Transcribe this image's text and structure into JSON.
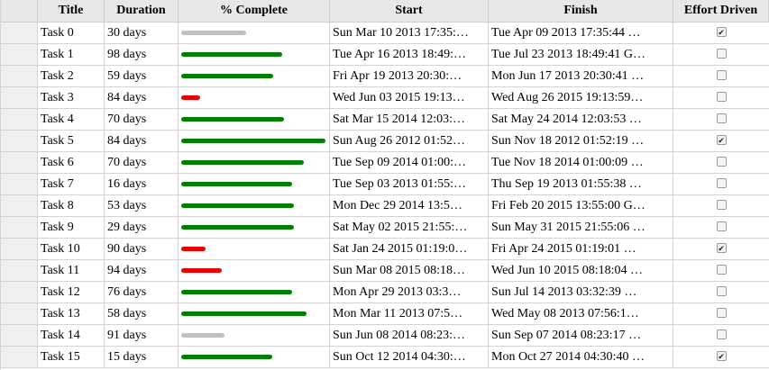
{
  "columns": {
    "title": "Title",
    "duration": "Duration",
    "percent": "% Complete",
    "start": "Start",
    "finish": "Finish",
    "effort": "Effort Driven"
  },
  "colors": {
    "complete_high": "#008000",
    "complete_low": "#ee0000",
    "complete_none": "#c0c0c0"
  },
  "rows": [
    {
      "title": "Task 0",
      "duration": "30 days",
      "percent": 45,
      "bar_color": "#c0c0c0",
      "start": "Sun Mar 10 2013 17:35:…",
      "finish": "Tue Apr 09 2013 17:35:44 …",
      "effort": true
    },
    {
      "title": "Task 1",
      "duration": "98 days",
      "percent": 70,
      "bar_color": "#008000",
      "start": "Tue Apr 16 2013 18:49:…",
      "finish": "Tue Jul 23 2013 18:49:41 G…",
      "effort": false
    },
    {
      "title": "Task 2",
      "duration": "59 days",
      "percent": 64,
      "bar_color": "#008000",
      "start": "Fri Apr 19 2013 20:30:…",
      "finish": "Mon Jun 17 2013 20:30:41 …",
      "effort": false
    },
    {
      "title": "Task 3",
      "duration": "84 days",
      "percent": 13,
      "bar_color": "#ee0000",
      "start": "Wed Jun 03 2015 19:13…",
      "finish": "Wed Aug 26 2015 19:13:59…",
      "effort": false
    },
    {
      "title": "Task 4",
      "duration": "70 days",
      "percent": 71,
      "bar_color": "#008000",
      "start": "Sat Mar 15 2014 12:03:…",
      "finish": "Sat May 24 2014 12:03:53 …",
      "effort": false
    },
    {
      "title": "Task 5",
      "duration": "84 days",
      "percent": 100,
      "bar_color": "#008000",
      "start": "Sun Aug 26 2012 01:52…",
      "finish": "Sun Nov 18 2012 01:52:19 …",
      "effort": true
    },
    {
      "title": "Task 6",
      "duration": "70 days",
      "percent": 85,
      "bar_color": "#008000",
      "start": "Tue Sep 09 2014 01:00:…",
      "finish": "Tue Nov 18 2014 01:00:09 …",
      "effort": false
    },
    {
      "title": "Task 7",
      "duration": "16 days",
      "percent": 77,
      "bar_color": "#008000",
      "start": "Tue Sep 03 2013 01:55:…",
      "finish": "Thu Sep 19 2013 01:55:38 …",
      "effort": false
    },
    {
      "title": "Task 8",
      "duration": "53 days",
      "percent": 78,
      "bar_color": "#008000",
      "start": "Mon Dec 29 2014 13:5…",
      "finish": "Fri Feb 20 2015 13:55:00 G…",
      "effort": false
    },
    {
      "title": "Task 9",
      "duration": "29 days",
      "percent": 78,
      "bar_color": "#008000",
      "start": "Sat May 02 2015 21:55:…",
      "finish": "Sun May 31 2015 21:55:06 …",
      "effort": false
    },
    {
      "title": "Task 10",
      "duration": "90 days",
      "percent": 17,
      "bar_color": "#ee0000",
      "start": "Sat Jan 24 2015 01:19:0…",
      "finish": "Fri Apr 24 2015 01:19:01 …",
      "effort": true
    },
    {
      "title": "Task 11",
      "duration": "94 days",
      "percent": 28,
      "bar_color": "#ee0000",
      "start": "Sun Mar 08 2015 08:18…",
      "finish": "Wed Jun 10 2015 08:18:04 …",
      "effort": false
    },
    {
      "title": "Task 12",
      "duration": "76 days",
      "percent": 77,
      "bar_color": "#008000",
      "start": "Mon Apr 29 2013 03:3…",
      "finish": "Sun Jul 14 2013 03:32:39 …",
      "effort": false
    },
    {
      "title": "Task 13",
      "duration": "58 days",
      "percent": 87,
      "bar_color": "#008000",
      "start": "Mon Mar 11 2013 07:5…",
      "finish": "Wed May 08 2013 07:56:1…",
      "effort": false
    },
    {
      "title": "Task 14",
      "duration": "91 days",
      "percent": 30,
      "bar_color": "#c0c0c0",
      "start": "Sun Jun 08 2014 08:23:…",
      "finish": "Sun Sep 07 2014 08:23:17 …",
      "effort": false
    },
    {
      "title": "Task 15",
      "duration": "15 days",
      "percent": 63,
      "bar_color": "#008000",
      "start": "Sun Oct 12 2014 04:30:…",
      "finish": "Mon Oct 27 2014 04:30:40 …",
      "effort": true
    }
  ]
}
